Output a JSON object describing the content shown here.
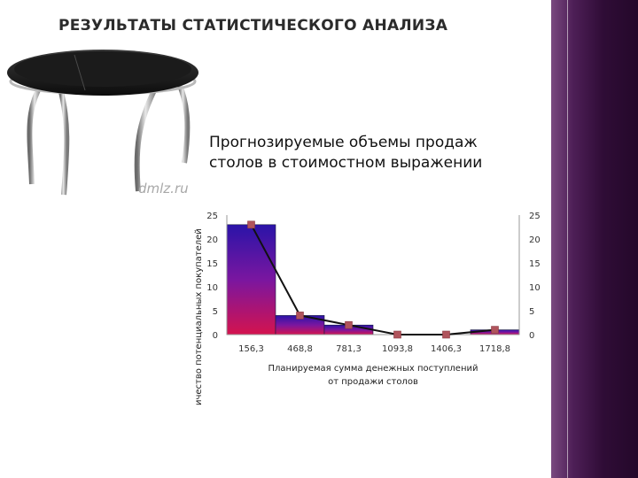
{
  "slide": {
    "title": "РЕЗУЛЬТАТЫ СТАТИСТИЧЕСКОГО АНАЛИЗА",
    "watermark": "dmlz.ru"
  },
  "colors": {
    "bar_top": "#2a14a8",
    "bar_bottom": "#d4134e",
    "line": "#111111",
    "marker": "#b0545c",
    "side_band": "#3a1040"
  },
  "chart_data": {
    "type": "bar",
    "title": "Прогнозируемые объемы продаж столов в стоимостном выражении",
    "title_lines": [
      "Прогнозируемые объемы продаж",
      "столов в стоимостном выражении"
    ],
    "xlabel": "Планируемая сумма денежных поступлений от продажи столов",
    "xlabel_lines": [
      "Планируемая сумма денежных поступлений",
      "от продажи столов"
    ],
    "ylabel": "ичество потенциальных покупателей",
    "categories": [
      "156,3",
      "468,8",
      "781,3",
      "1093,8",
      "1406,3",
      "1718,8"
    ],
    "series": [
      {
        "type": "bar",
        "values": [
          23,
          4,
          2,
          0,
          0,
          1
        ]
      },
      {
        "type": "line",
        "values": [
          23,
          4,
          2,
          0,
          0,
          1
        ]
      }
    ],
    "ylim": [
      0,
      25
    ],
    "yticks": [
      "0",
      "5",
      "10",
      "15",
      "20",
      "25"
    ],
    "secondary_yticks": [
      "0",
      "5",
      "10",
      "15",
      "20",
      "25"
    ],
    "grid": false,
    "legend": "none"
  }
}
